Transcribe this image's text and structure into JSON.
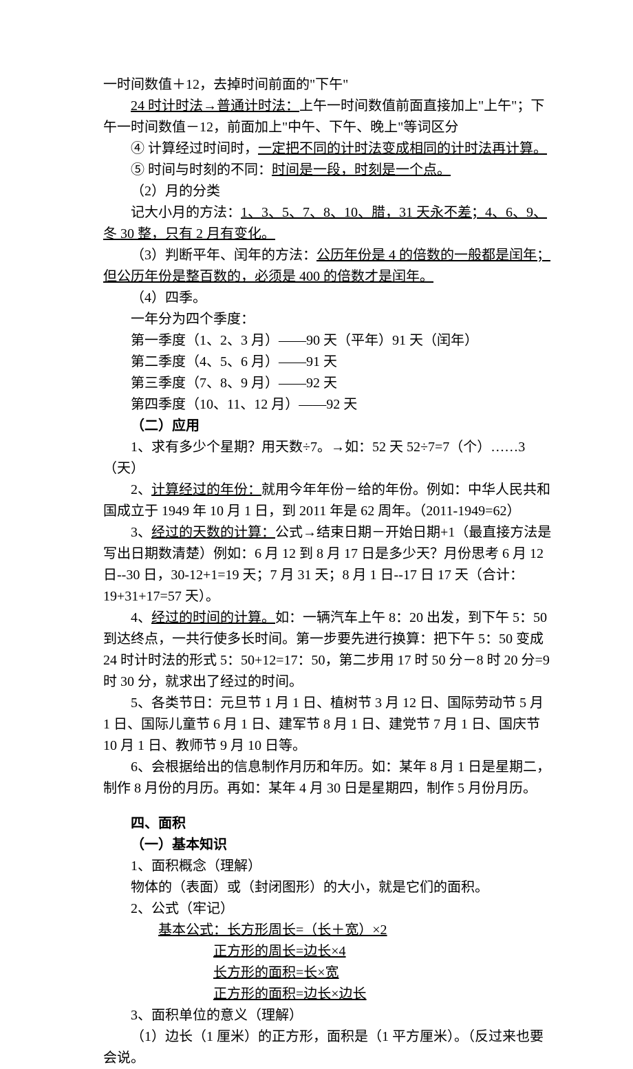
{
  "lines": {
    "l1": "一时间数值＋12，去掉时间前面的\"下午\"",
    "l2a": "24 时计时法→普通计时法：",
    "l2b": "上午一时间数值前面直接加上\"上午\"；下午一时间数值－12，前面加上\"中午、下午、晚上\"等词区分",
    "l3a": "④ 计算经过时间时，",
    "l3b": "一定把不同的计时法变成相同的计时法再计算。",
    "l4a": "⑤ 时间与时刻的不同：",
    "l4b": "时间是一段，时刻是一个点。",
    "l5": "（2）月的分类",
    "l6a": "记大小月的方法：",
    "l6b": "1、3、5、7、8、10、腊，31 天永不差；4、6、9、冬 30 整，只有 2 月有变化。",
    "l7a": "（3）判断平年、闰年的方法：",
    "l7b": "公历年份是 4 的倍数的一般都是闰年；但公历年份是整百数的，必须是 400 的倍数才是闰年。",
    "l8": "（4）四季。",
    "l9": "一年分为四个季度：",
    "l10": "第一季度（1、2、3 月）——90 天（平年）91 天（闰年）",
    "l11": "第二季度（4、5、6 月）——91 天",
    "l12": "第三季度（7、8、9 月）——92 天",
    "l13": "第四季度（10、11、12 月）——92 天",
    "l14": "（二）应用",
    "l15": "1、求有多少个星期？用天数÷7。→如：52 天 52÷7=7（个）……3（天）",
    "l16a": "2、",
    "l16b": "计算经过的年份：",
    "l16c": "就用今年年份－给的年份。例如：中华人民共和国成立于 1949 年 10 月 1 日，到 2011 年是 62 周年。（2011-1949=62）",
    "l17a": "3、",
    "l17b": "经过的天数的计算：",
    "l17c": "公式→结束日期－开始日期+1（最直接方法是写出日期数清楚）例如：6 月 12 到 8 月 17 日是多少天？月份思考 6 月 12 日--30 日，30-12+1=19 天；7 月 31 天；8 月 1 日--17 日 17 天（合计：19+31+17=57 天）。",
    "l18a": "4、",
    "l18b": "经过的时间的计算。",
    "l18c": "如：一辆汽车上午 8：20 出发，到下午 5：50 到达终点，一共行使多长时间。第一步要先进行换算：把下午 5：50 变成 24 时计时法的形式 5：50+12=17：50，第二步用 17 时 50 分－8 时 20 分=9 时 30 分，就求出了经过的时间。",
    "l19": "5、各类节日：元旦节 1 月 1 日、植树节 3 月 12 日、国际劳动节 5 月 1 日、国际儿童节 6 月 1 日、建军节 8 月 1 日、建党节 7 月 1 日、国庆节 10 月 1 日、教师节 9 月 10 日等。",
    "l20": "6、会根据给出的信息制作月历和年历。如：某年 8 月 1 日是星期二，制作 8 月份的月历。再如：某年 4 月 30 日是星期四，制作 5 月份月历。",
    "h1": "四、面积",
    "h2": "（一）基本知识",
    "a1": "1、面积概念（理解）",
    "a2": "物体的（表面）或（封闭图形）的大小，就是它们的面积。",
    "a3": "2、公式（牢记）",
    "f1a": "基本公式：",
    "f1b": "长方形周长=（长＋宽）×2",
    "f2": "正方形的周长=边长×4",
    "f3": "长方形的面积=长×宽",
    "f4": "正方形的面积=边长×边长",
    "a4": "3、面积单位的意义（理解）",
    "a5": "（1）边长（1 厘米）的正方形，面积是（1 平方厘米）。（反过来也要会说。"
  }
}
